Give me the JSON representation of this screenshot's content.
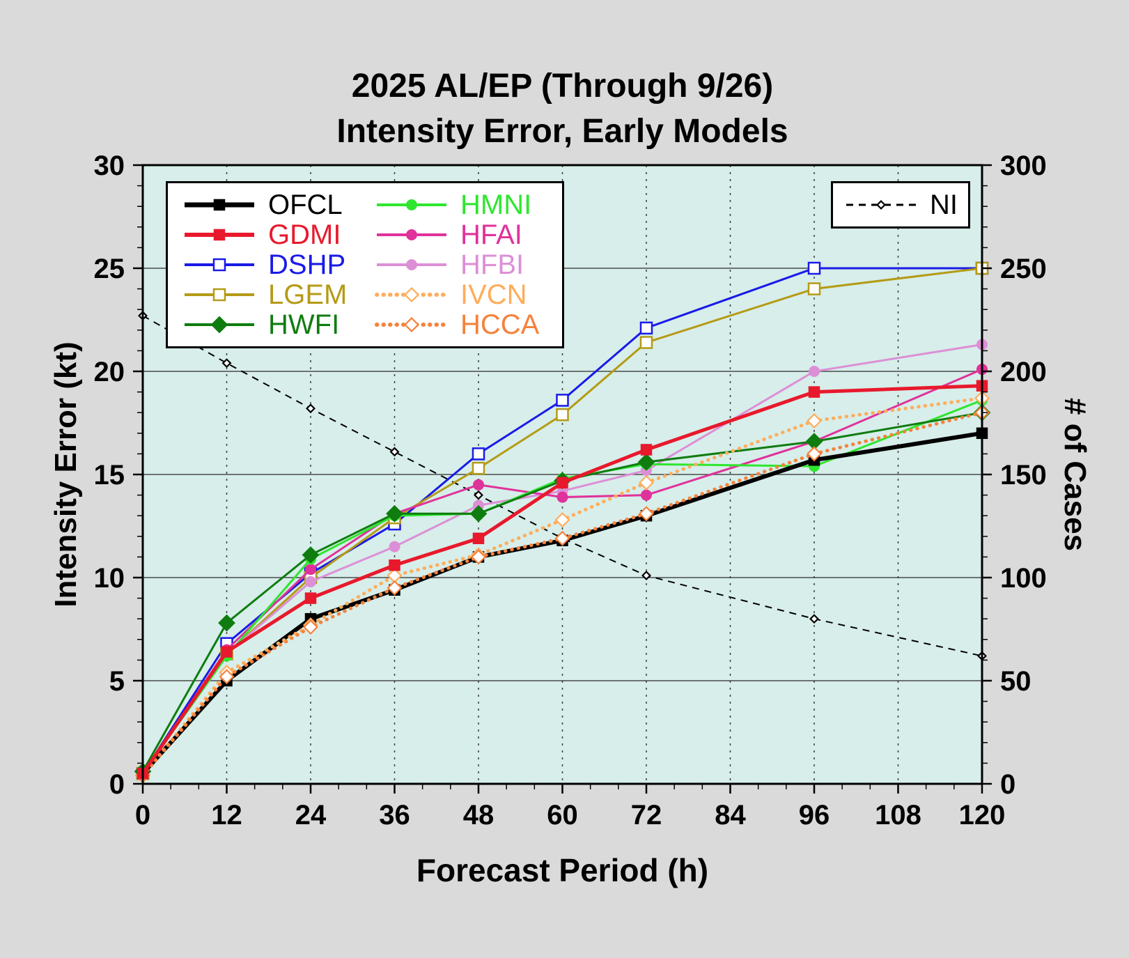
{
  "chart_data": {
    "type": "line",
    "title_line1": "2025 AL/EP (Through 9/26)",
    "title_line2": "Intensity Error, Early Models",
    "xlabel": "Forecast Period (h)",
    "ylabel_left": "Intensity Error (kt)",
    "ylabel_right": "# of Cases",
    "x": [
      0,
      12,
      24,
      36,
      48,
      60,
      72,
      96,
      120
    ],
    "xlim": [
      0,
      120
    ],
    "x_ticks": [
      0,
      12,
      24,
      36,
      48,
      60,
      72,
      84,
      96,
      108,
      120
    ],
    "ylim_left": [
      0,
      30
    ],
    "y_ticks_left": [
      0,
      5,
      10,
      15,
      20,
      25,
      30
    ],
    "ylim_right": [
      0,
      300
    ],
    "y_ticks_right": [
      0,
      50,
      100,
      150,
      200,
      250,
      300
    ],
    "grid": {
      "horizontal": "solid",
      "vertical": "dashed"
    },
    "legend_position": "upper-left",
    "page_bg": "#dadada",
    "plot_bg": "#d7eeea",
    "series": [
      {
        "name": "NI",
        "color": "#000000",
        "width": 2,
        "dash": "dashed",
        "marker": "diamond",
        "marker_fill": "open",
        "marker_size": 4,
        "axis": "right",
        "values": [
          227,
          204,
          182,
          161,
          140,
          119,
          101,
          80,
          62
        ]
      },
      {
        "name": "DSHP",
        "color": "#1a1ae8",
        "width": 3,
        "dash": "solid",
        "marker": "square",
        "marker_fill": "open",
        "marker_size": 8,
        "axis": "left",
        "values": [
          0.5,
          6.8,
          10.2,
          12.6,
          16.0,
          18.6,
          22.1,
          25.0,
          25.0
        ]
      },
      {
        "name": "LGEM",
        "color": "#b59a16",
        "width": 3,
        "dash": "solid",
        "marker": "square",
        "marker_fill": "open",
        "marker_size": 8,
        "axis": "left",
        "values": [
          0.5,
          6.3,
          10.0,
          12.9,
          15.3,
          17.9,
          21.4,
          24.0,
          25.0
        ]
      },
      {
        "name": "HFBI",
        "color": "#dd8fd6",
        "width": 3,
        "dash": "solid",
        "marker": "circle",
        "marker_fill": "filled",
        "marker_size": 7,
        "axis": "left",
        "values": [
          0.5,
          6.3,
          9.8,
          11.5,
          13.5,
          14.2,
          15.2,
          20.0,
          21.3
        ]
      },
      {
        "name": "HFAI",
        "color": "#e0329b",
        "width": 3,
        "dash": "solid",
        "marker": "circle",
        "marker_fill": "filled",
        "marker_size": 7,
        "axis": "left",
        "values": [
          0.5,
          6.5,
          10.4,
          13.1,
          14.5,
          13.9,
          14.0,
          16.6,
          20.1
        ]
      },
      {
        "name": "HMNI",
        "color": "#2fe62f",
        "width": 3,
        "dash": "solid",
        "marker": "circle",
        "marker_fill": "filled",
        "marker_size": 7,
        "axis": "left",
        "values": [
          0.5,
          6.2,
          10.9,
          13.0,
          13.1,
          14.8,
          15.5,
          15.4,
          18.6
        ]
      },
      {
        "name": "HWFI",
        "color": "#0f7c0f",
        "width": 3,
        "dash": "solid",
        "marker": "diamond",
        "marker_fill": "filled",
        "marker_size": 8,
        "axis": "left",
        "values": [
          0.6,
          7.8,
          11.1,
          13.1,
          13.1,
          14.7,
          15.6,
          16.6,
          18.0
        ]
      },
      {
        "name": "OFCL",
        "color": "#000000",
        "width": 6,
        "dash": "solid",
        "marker": "square",
        "marker_fill": "filled",
        "marker_size": 7,
        "axis": "left",
        "values": [
          0.5,
          5.0,
          8.0,
          9.4,
          11.0,
          11.8,
          13.0,
          15.7,
          17.0
        ]
      },
      {
        "name": "IVCN",
        "color": "#ffad5c",
        "width": 5,
        "dash": "dotted",
        "marker": "diamond",
        "marker_fill": "open",
        "marker_size": 7,
        "axis": "left",
        "values": [
          0.4,
          5.4,
          7.7,
          10.1,
          11.1,
          12.8,
          14.6,
          17.6,
          18.7
        ]
      },
      {
        "name": "HCCA",
        "color": "#f5823c",
        "width": 5,
        "dash": "dotted",
        "marker": "diamond",
        "marker_fill": "open",
        "marker_size": 7,
        "axis": "left",
        "values": [
          0.4,
          5.2,
          7.6,
          9.5,
          11.0,
          11.9,
          13.1,
          16.0,
          18.0
        ]
      }
    ],
    "legend_main_columns": [
      [
        "OFCL",
        "GDMI",
        "DSHP",
        "LGEM",
        "HWFI"
      ],
      [
        "HMNI",
        "HFAI",
        "HFBI",
        "IVCN",
        "HCCA"
      ]
    ],
    "legend_ni": [
      "NI"
    ],
    "gdmi": {
      "name": "GDMI",
      "color": "#e8192c",
      "width": 5,
      "dash": "solid",
      "marker": "square",
      "marker_fill": "filled",
      "marker_size": 7,
      "axis": "left",
      "values": [
        0.5,
        6.4,
        9.0,
        10.6,
        11.9,
        14.6,
        16.2,
        19.0,
        19.3
      ]
    }
  }
}
